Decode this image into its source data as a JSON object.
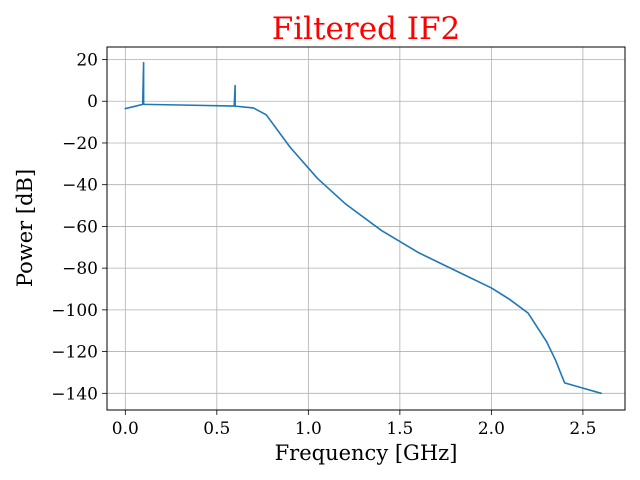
{
  "chart_data": {
    "type": "line",
    "title": "Filtered IF2",
    "title_color": "#ff0000",
    "xlabel": "Frequency [GHz]",
    "ylabel": "Power [dB]",
    "xlim": [
      -0.1,
      2.73
    ],
    "ylim": [
      -148,
      26
    ],
    "grid": true,
    "line_color": "#1f77b4",
    "x_ticks": [
      0.0,
      0.5,
      1.0,
      1.5,
      2.0,
      2.5
    ],
    "x_tick_labels": [
      "0.0",
      "0.5",
      "1.0",
      "1.5",
      "2.0",
      "2.5"
    ],
    "y_ticks": [
      20,
      0,
      -20,
      -40,
      -60,
      -80,
      -100,
      -120,
      -140
    ],
    "y_tick_labels": [
      "20",
      "0",
      "−20",
      "−40",
      "−60",
      "−80",
      "−100",
      "−120",
      "−140"
    ],
    "series": [
      {
        "x": [
          0.0,
          0.05,
          0.095,
          0.1,
          0.1,
          0.105,
          0.3,
          0.595,
          0.6,
          0.6,
          0.605,
          0.7,
          0.77,
          0.9,
          1.05,
          1.2,
          1.4,
          1.6,
          1.8,
          2.0,
          2.1,
          2.2,
          2.3,
          2.35,
          2.4,
          2.5,
          2.6
        ],
        "y": [
          -3.5,
          -2.5,
          -1.5,
          18.5,
          -1.5,
          -1.5,
          -1.8,
          -2.3,
          7.5,
          -2.3,
          -2.4,
          -3.2,
          -6.5,
          -22,
          -37,
          -49,
          -62,
          -72.5,
          -81,
          -89.5,
          -95,
          -101.5,
          -115,
          -124,
          -135,
          -137.5,
          -140
        ]
      }
    ]
  }
}
